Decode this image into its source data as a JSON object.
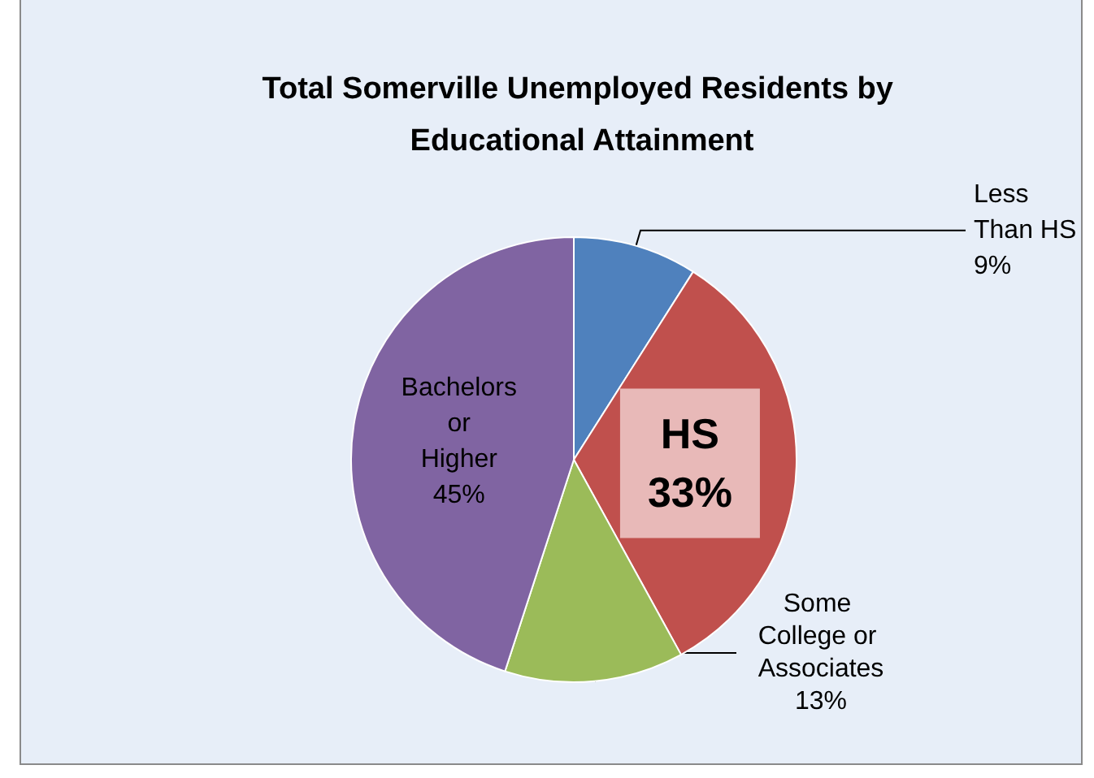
{
  "chart_data": {
    "type": "pie",
    "title": "Total Somerville Unemployed Residents by Educational Attainment",
    "categories": [
      "Less Than HS",
      "HS",
      "Some College or Associates",
      "Bachelors or Higher"
    ],
    "values": [
      9,
      33,
      13,
      45
    ],
    "colors": [
      "#4f81bd",
      "#c0504d",
      "#9bbb59",
      "#8064a2"
    ],
    "data_labels": true,
    "value_labels": [
      "9%",
      "33%",
      "13%",
      "45%"
    ],
    "legend": false
  }
}
